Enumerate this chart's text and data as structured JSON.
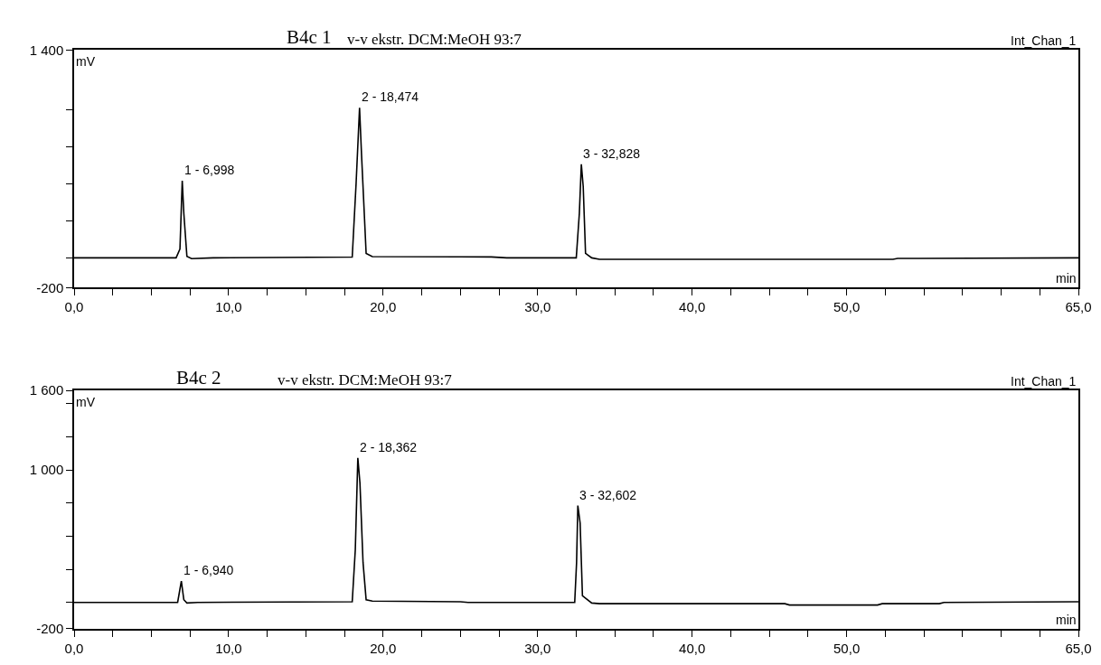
{
  "chart_data": [
    {
      "type": "line",
      "title": "B4c 1",
      "subtitle": "v-v ekstr. DCM:MeOH 93:7",
      "xlabel": "min",
      "ylabel": "mV",
      "annotations": [
        "Int_Chan_1",
        {
          "text": "1 - 6,998",
          "x": 6.998,
          "y": 520
        },
        {
          "text": "2 - 18,474",
          "x": 18.474,
          "y": 1010
        },
        {
          "text": "3 - 32,828",
          "x": 32.828,
          "y": 630
        }
      ],
      "series": [
        {
          "color": "#000000",
          "x": [
            0,
            6.6,
            6.85,
            6.998,
            7.1,
            7.3,
            7.6,
            9,
            18.0,
            18.25,
            18.474,
            18.6,
            18.9,
            19.3,
            27,
            28,
            32.5,
            32.7,
            32.828,
            32.95,
            33.1,
            33.5,
            34,
            53,
            53.3,
            65
          ],
          "values": [
            0,
            0,
            60,
            520,
            300,
            10,
            -5,
            0,
            5,
            500,
            1010,
            700,
            30,
            8,
            6,
            0,
            0,
            300,
            630,
            480,
            30,
            0,
            -10,
            -10,
            -4,
            0
          ]
        }
      ],
      "xlim": [
        0,
        65
      ],
      "xticks": [
        {
          "value": 0,
          "label": "0,0"
        },
        {
          "value": 2.5,
          "label": null
        },
        {
          "value": 5,
          "label": null
        },
        {
          "value": 7.5,
          "label": null
        },
        {
          "value": 10,
          "label": "10,0"
        },
        {
          "value": 12.5,
          "label": null
        },
        {
          "value": 15,
          "label": null
        },
        {
          "value": 17.5,
          "label": null
        },
        {
          "value": 20,
          "label": "20,0"
        },
        {
          "value": 22.5,
          "label": null
        },
        {
          "value": 25,
          "label": null
        },
        {
          "value": 27.5,
          "label": null
        },
        {
          "value": 30,
          "label": "30,0"
        },
        {
          "value": 32.5,
          "label": null
        },
        {
          "value": 35,
          "label": null
        },
        {
          "value": 37.5,
          "label": null
        },
        {
          "value": 40,
          "label": "40,0"
        },
        {
          "value": 42.5,
          "label": null
        },
        {
          "value": 45,
          "label": null
        },
        {
          "value": 47.5,
          "label": null
        },
        {
          "value": 50,
          "label": "50,0"
        },
        {
          "value": 52.5,
          "label": null
        },
        {
          "value": 55,
          "label": null
        },
        {
          "value": 57.5,
          "label": null
        },
        {
          "value": 60,
          "label": null
        },
        {
          "value": 62.5,
          "label": null
        },
        {
          "value": 65,
          "label": "65,0"
        }
      ],
      "ylim": [
        -200,
        1400
      ],
      "yticks": [
        {
          "value": -200,
          "label": "-200"
        },
        {
          "value": 0,
          "label": null
        },
        {
          "value": 250,
          "label": null
        },
        {
          "value": 500,
          "label": null
        },
        {
          "value": 750,
          "label": null
        },
        {
          "value": 1000,
          "label": null
        },
        {
          "value": 1400,
          "label": "1 400"
        }
      ],
      "grid": false
    },
    {
      "type": "line",
      "title": "B4c 2",
      "subtitle": "v-v ekstr. DCM:MeOH 93:7",
      "xlabel": "min",
      "ylabel": "mV",
      "annotations": [
        "Int_Chan_1",
        {
          "text": "1 - 6,940",
          "x": 6.94,
          "y": 160
        },
        {
          "text": "2 - 18,362",
          "x": 18.362,
          "y": 1090
        },
        {
          "text": "3 - 32,602",
          "x": 32.602,
          "y": 730
        }
      ],
      "series": [
        {
          "color": "#000000",
          "x": [
            0,
            6.7,
            6.85,
            6.94,
            7.1,
            7.3,
            8,
            18.0,
            18.2,
            18.362,
            18.5,
            18.7,
            18.9,
            19.3,
            25,
            25.5,
            32.4,
            32.52,
            32.602,
            32.75,
            32.9,
            33.5,
            34,
            46,
            46.3,
            52,
            52.3,
            56,
            56.3,
            65
          ],
          "values": [
            0,
            0,
            100,
            160,
            20,
            -5,
            0,
            5,
            400,
            1090,
            900,
            300,
            20,
            10,
            5,
            0,
            0,
            300,
            730,
            600,
            50,
            -5,
            -10,
            -10,
            -20,
            -20,
            -10,
            -10,
            0,
            5
          ]
        }
      ],
      "xlim": [
        0,
        65
      ],
      "xticks": [
        {
          "value": 0,
          "label": "0,0"
        },
        {
          "value": 2.5,
          "label": null
        },
        {
          "value": 5,
          "label": null
        },
        {
          "value": 7.5,
          "label": null
        },
        {
          "value": 10,
          "label": "10,0"
        },
        {
          "value": 12.5,
          "label": null
        },
        {
          "value": 15,
          "label": null
        },
        {
          "value": 17.5,
          "label": null
        },
        {
          "value": 20,
          "label": "20,0"
        },
        {
          "value": 22.5,
          "label": null
        },
        {
          "value": 25,
          "label": null
        },
        {
          "value": 27.5,
          "label": null
        },
        {
          "value": 30,
          "label": "30,0"
        },
        {
          "value": 32.5,
          "label": null
        },
        {
          "value": 35,
          "label": null
        },
        {
          "value": 37.5,
          "label": null
        },
        {
          "value": 40,
          "label": "40,0"
        },
        {
          "value": 42.5,
          "label": null
        },
        {
          "value": 45,
          "label": null
        },
        {
          "value": 47.5,
          "label": null
        },
        {
          "value": 50,
          "label": "50,0"
        },
        {
          "value": 52.5,
          "label": null
        },
        {
          "value": 55,
          "label": null
        },
        {
          "value": 57.5,
          "label": null
        },
        {
          "value": 60,
          "label": null
        },
        {
          "value": 62.5,
          "label": null
        },
        {
          "value": 65,
          "label": "65,0"
        }
      ],
      "ylim": [
        -200,
        1600
      ],
      "yticks": [
        {
          "value": -200,
          "label": "-200"
        },
        {
          "value": 0,
          "label": null
        },
        {
          "value": 250,
          "label": null
        },
        {
          "value": 500,
          "label": null
        },
        {
          "value": 750,
          "label": null
        },
        {
          "value": 1000,
          "label": "1 000"
        },
        {
          "value": 1250,
          "label": null
        },
        {
          "value": 1500,
          "label": null
        },
        {
          "value": 1600,
          "label": "1 600"
        }
      ],
      "grid": false
    }
  ]
}
